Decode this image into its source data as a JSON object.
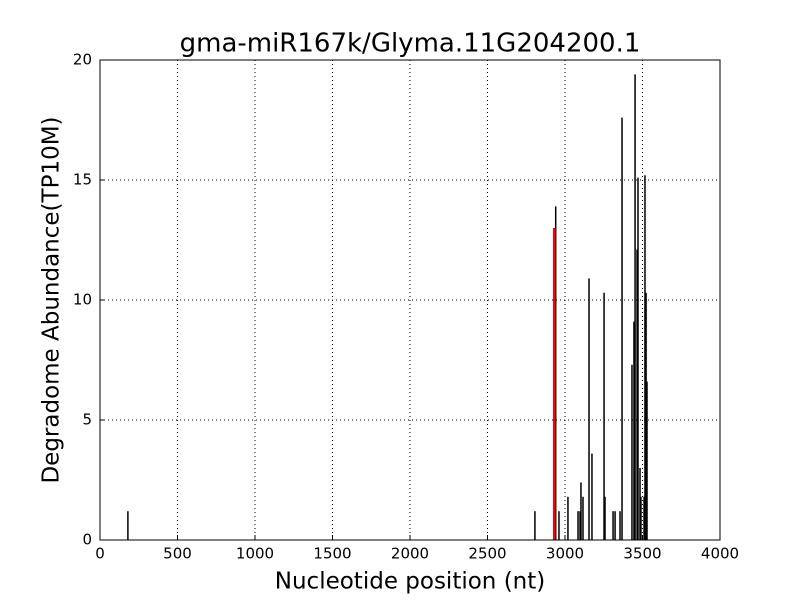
{
  "chart_data": {
    "type": "stem",
    "title": "gma-miR167k/Glyma.11G204200.1",
    "xlabel": "Nucleotide position (nt)",
    "ylabel": "Degradome Abundance(TP10M)",
    "xlim": [
      0,
      4000
    ],
    "xticks": [
      0,
      500,
      1000,
      1500,
      2000,
      2500,
      3000,
      3500,
      4000
    ],
    "ylim": [
      0,
      20
    ],
    "yticks": [
      0,
      5,
      10,
      15,
      20
    ],
    "grid": true,
    "series": [
      {
        "color": "#000000",
        "x": [
          180,
          2806,
          2940,
          2961,
          3019,
          3084,
          3097,
          3103,
          3116,
          3155,
          3174,
          3252,
          3258,
          3310,
          3323,
          3355,
          3368,
          3432,
          3445,
          3452,
          3465,
          3471,
          3484,
          3490,
          3510,
          3516,
          3523,
          3529
        ],
        "values": [
          1.2,
          1.2,
          13.9,
          1.2,
          1.8,
          1.2,
          1.2,
          2.4,
          1.8,
          10.9,
          3.6,
          10.3,
          1.8,
          1.2,
          1.2,
          1.2,
          17.6,
          7.3,
          9.1,
          19.4,
          12.1,
          15.1,
          3.0,
          1.8,
          1.8,
          15.2,
          10.3,
          6.6
        ]
      },
      {
        "color": "#ff0000",
        "x": [
          2930
        ],
        "values": [
          13.0
        ]
      }
    ]
  }
}
